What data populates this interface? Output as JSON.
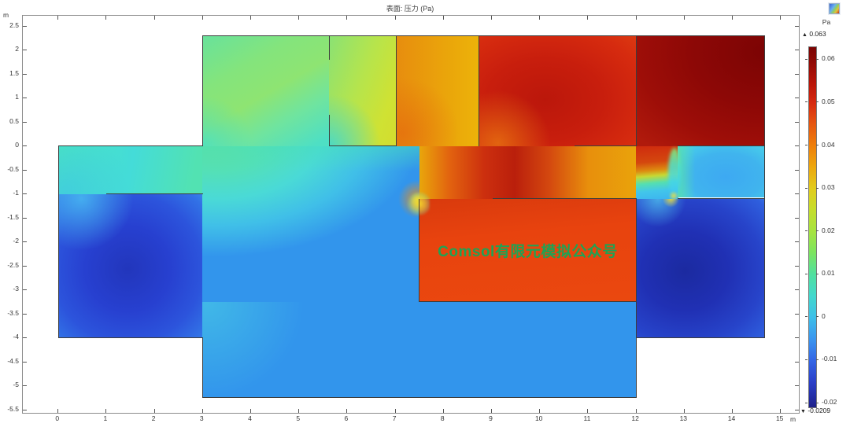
{
  "header": {
    "title": "表面: 压力 (Pa)"
  },
  "window": {
    "plot_icon": "surface-plot-icon"
  },
  "axes": {
    "x": {
      "unit": "m",
      "ticks": [
        0,
        1,
        2,
        3,
        4,
        5,
        6,
        7,
        8,
        9,
        10,
        11,
        12,
        13,
        14,
        15
      ]
    },
    "y": {
      "unit": "m",
      "ticks": [
        2.5,
        2,
        1.5,
        1,
        0.5,
        0,
        -0.5,
        -1,
        -1.5,
        -2,
        -2.5,
        -3,
        -3.5,
        -4,
        -4.5,
        -5,
        -5.5
      ]
    }
  },
  "colorbar": {
    "unit": "Pa",
    "max_marker": "▲",
    "max_value": "0.063",
    "min_marker": "▼",
    "min_value": "-0.0209",
    "max": 0.063,
    "min": -0.0209,
    "tick_values": [
      0.06,
      0.05,
      0.04,
      0.03,
      0.02,
      0.01,
      0,
      -0.01,
      -0.02
    ],
    "tick_labels": [
      "0.06",
      "0.05",
      "0.04",
      "0.03",
      "0.02",
      "0.01",
      "0",
      "-0.01",
      "-0.02"
    ]
  },
  "watermark": {
    "text": "Comsol有限元模拟公众号",
    "color": "#1ea354"
  },
  "chart_data": {
    "type": "heatmap",
    "title": "表面: 压力 (Pa)",
    "x_unit": "m",
    "y_unit": "m",
    "x_ticks": [
      0,
      1,
      2,
      3,
      4,
      5,
      6,
      7,
      8,
      9,
      10,
      11,
      12,
      13,
      14,
      15
    ],
    "y_ticks": [
      2.5,
      2,
      1.5,
      1,
      0.5,
      0,
      -0.5,
      -1,
      -1.5,
      -2,
      -2.5,
      -3,
      -3.5,
      -4,
      -4.5,
      -5,
      -5.5
    ],
    "xlim": [
      -0.75,
      15.4
    ],
    "ylim": [
      -5.6,
      2.7
    ],
    "value_unit": "Pa",
    "value_max": 0.063,
    "value_min": -0.0209,
    "colorbar_ticks": [
      0.06,
      0.05,
      0.04,
      0.03,
      0.02,
      0.01,
      0,
      -0.01,
      -0.02
    ],
    "colormap": "rainbow (dark blue → blue → cyan → green → yellow → orange → red → dark red)",
    "description": "COMSOL surface plot of pressure (Pa) over a 2D apartment floor plan; interior walls with door openings create jets and pressure jumps between rooms.",
    "regions": [
      {
        "name": "top-room-green",
        "x": [
          3,
          5.63
        ],
        "y": [
          0,
          2.3
        ],
        "pressure_approx": 0.022,
        "color": "#84e47c"
      },
      {
        "name": "top-room-yellow",
        "x": [
          5.63,
          7.03
        ],
        "y": [
          0,
          2.3
        ],
        "pressure_approx": 0.031,
        "color": "#cfe233"
      },
      {
        "name": "top-room-orange",
        "x": [
          7.03,
          8.74
        ],
        "y": [
          0,
          2.3
        ],
        "pressure_approx": 0.04,
        "color": "#eaa30b"
      },
      {
        "name": "top-room-red",
        "x": [
          8.74,
          12
        ],
        "y": [
          0,
          2.3
        ],
        "pressure_approx": 0.051,
        "color": "#c81e0d"
      },
      {
        "name": "top-room-darkred",
        "x": [
          12,
          14.67
        ],
        "y": [
          0,
          2.3
        ],
        "pressure_approx": 0.059,
        "color": "#8d0806"
      },
      {
        "name": "left-corridor",
        "x": [
          0,
          3
        ],
        "y": [
          -1,
          0
        ],
        "pressure_approx": 0.013,
        "color": "#44dcd8"
      },
      {
        "name": "left-lower-room",
        "x": [
          0,
          3
        ],
        "y": [
          -4,
          -1
        ],
        "pressure_approx": -0.008,
        "color": "#2740d0"
      },
      {
        "name": "central-hall",
        "x": [
          3,
          7.5
        ],
        "y": [
          -3.25,
          0
        ],
        "pressure_approx": 0.008,
        "color": "#4adad6"
      },
      {
        "name": "right-corridor",
        "x": [
          7.5,
          12
        ],
        "y": [
          -1.1,
          0
        ],
        "pressure_approx": 0.045,
        "color": "#d4480f"
      },
      {
        "name": "watermark-room",
        "x": [
          7.5,
          12
        ],
        "y": [
          -3.25,
          -1.1
        ],
        "pressure_approx": 0.048,
        "color": "#e8430e"
      },
      {
        "name": "bottom-room",
        "x": [
          3,
          12
        ],
        "y": [
          -5.25,
          -3.25
        ],
        "pressure_approx": 0.003,
        "color": "#3295ec"
      },
      {
        "name": "right-small-room",
        "x": [
          12.87,
          14.67
        ],
        "y": [
          -1.07,
          0
        ],
        "pressure_approx": 0.0,
        "color": "#40b4ee"
      },
      {
        "name": "right-lower-room",
        "x": [
          12,
          14.67
        ],
        "y": [
          -4,
          -1.1
        ],
        "pressure_approx": -0.012,
        "color": "#2030b4"
      }
    ]
  }
}
